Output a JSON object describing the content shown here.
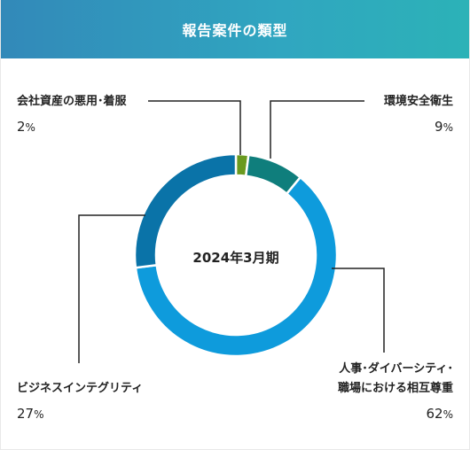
{
  "header": {
    "title": "報告案件の類型"
  },
  "chart_data": {
    "type": "pie",
    "variant": "donut",
    "center_label": "2024年3月期",
    "percent_symbol": "%",
    "slices": [
      {
        "name": "会社資産の悪用･着服",
        "value": 2,
        "color": "#6a9a1f"
      },
      {
        "name": "環境安全衛生",
        "value": 9,
        "color": "#0f7e7c"
      },
      {
        "name": "人事･ダイバーシティ･職場における相互尊重",
        "value": 62,
        "color": "#0e9bdc"
      },
      {
        "name": "ビジネスインテグリティ",
        "value": 27,
        "color": "#0a73a8"
      }
    ]
  },
  "labels": {
    "assets_name": "会社資産の悪用･着服",
    "env_name": "環境安全衛生",
    "hr_name_line1": "人事･ダイバーシティ･",
    "hr_name_line2": "職場における相互尊重",
    "biz_name": "ビジネスインテグリティ"
  }
}
